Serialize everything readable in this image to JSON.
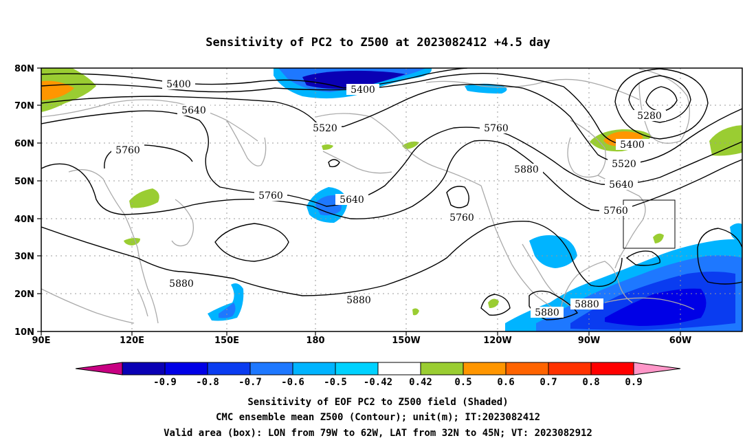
{
  "title": "Sensitivity of PC2 to Z500 at 2023082412 +4.5 day",
  "axes": {
    "lon_ticks": [
      "90E",
      "120E",
      "150E",
      "180",
      "150W",
      "120W",
      "90W",
      "60W"
    ],
    "lat_ticks": [
      "80N",
      "70N",
      "60N",
      "50N",
      "40N",
      "30N",
      "20N",
      "10N"
    ]
  },
  "map": {
    "lon_range": [
      "90E",
      "45W"
    ],
    "lat_range": [
      "10N",
      "80N"
    ],
    "valid_box": {
      "lon": [
        "79W",
        "62W"
      ],
      "lat": [
        "32N",
        "45N"
      ]
    }
  },
  "contour_labels": [
    "5400",
    "5400",
    "5640",
    "5520",
    "5760",
    "5280",
    "5400",
    "5520",
    "5640",
    "5760",
    "5880",
    "5760",
    "5640",
    "5760",
    "5880",
    "5880",
    "5880",
    "5880"
  ],
  "colorbar": {
    "ticks": [
      "-0.9",
      "-0.8",
      "-0.7",
      "-0.6",
      "-0.5",
      "-0.42",
      "0.42",
      "0.5",
      "0.6",
      "0.7",
      "0.8",
      "0.9"
    ],
    "colors": [
      "#c80082",
      "#0a00b4",
      "#0000e6",
      "#0a3cf0",
      "#1e78ff",
      "#00b4ff",
      "#00d2ff",
      "#ffffff",
      "#9acd32",
      "#ff9600",
      "#ff6400",
      "#ff3200",
      "#ff0000",
      "#ff96c8"
    ]
  },
  "caption": [
    "Sensitivity of EOF PC2 to Z500 field (Shaded)",
    "CMC ensemble mean Z500 (Contour); unit(m); IT:2023082412",
    "Valid area (box): LON from 79W to 62W, LAT from 32N to 45N; VT: 2023082912"
  ]
}
